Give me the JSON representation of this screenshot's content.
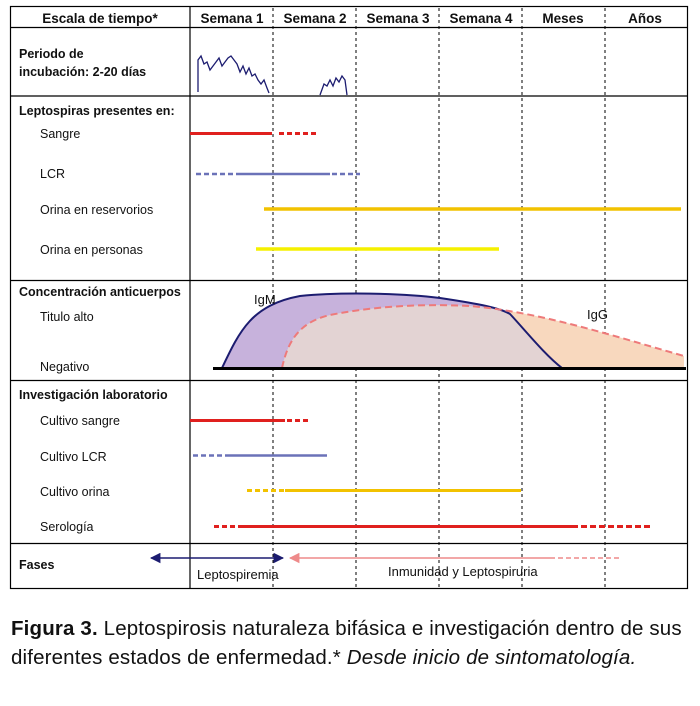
{
  "header": {
    "scale_label": "Escala de tiempo*",
    "columns": [
      "Semana 1",
      "Semana 2",
      "Semana 3",
      "Semana 4",
      "Meses",
      "Años"
    ]
  },
  "incubation": {
    "label_line1": "Periodo de",
    "label_line2": "incubación: 2-20 días"
  },
  "leptospiras": {
    "title": "Leptospiras presentes en:",
    "rows": [
      "Sangre",
      "LCR",
      "Orina en reservorios",
      "Orina en personas"
    ]
  },
  "antibodies": {
    "title": "Concentración anticuerpos",
    "high_label": "Titulo alto",
    "negative_label": "Negativo",
    "igm_label": "IgM",
    "igg_label": "IgG"
  },
  "lab": {
    "title": "Investigación laboratorio",
    "rows": [
      "Cultivo sangre",
      "Cultivo LCR",
      "Cultivo orina",
      "Serología"
    ]
  },
  "phases": {
    "title": "Fases",
    "phase1": "Leptospiremia",
    "phase2": "Inmunidad y Leptospiruria"
  },
  "colors": {
    "red": "#e0201e",
    "blue": "#6b72b8",
    "gold": "#f2c200",
    "yellow": "#f5f000",
    "igm_line": "#1c1c70",
    "igm_fill": "#c7b2dc",
    "igg_line": "#ee7a7a",
    "igg_fill": "#f8d8be",
    "overlap_fill": "#e3d3d3",
    "phase1_arrow": "#1c1c70",
    "phase2_arrow": "#ee8a8a"
  },
  "caption": {
    "fig": "Figura 3.",
    "text": " Leptospirosis naturaleza bifásica e investigación dentro de sus diferentes estados de enfermedad.* ",
    "note": "Desde inicio de sintomatología."
  }
}
